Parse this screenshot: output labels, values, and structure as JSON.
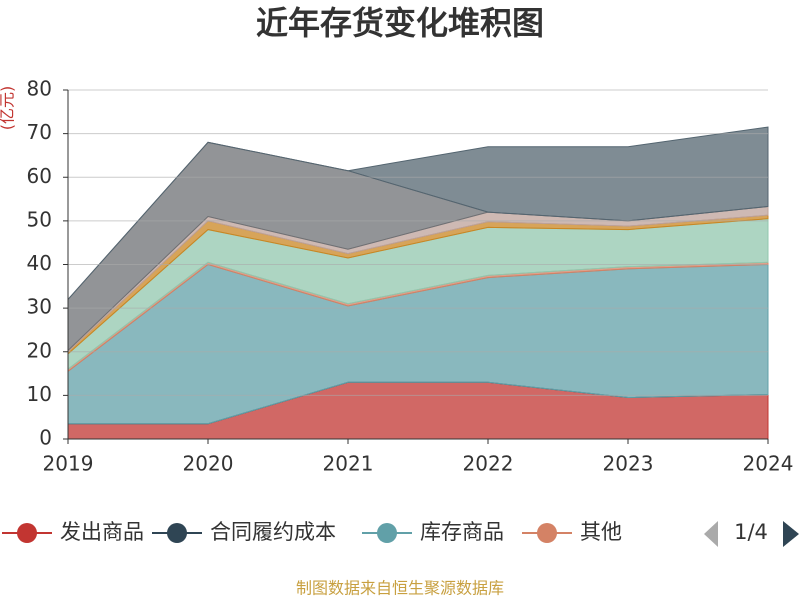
{
  "chart_data": {
    "type": "stacked_area",
    "title": "近年存货变化堆积图",
    "y_unit": "(亿元)",
    "source": "制图数据来自恒生聚源数据库",
    "legend_page": "1/4",
    "categories": [
      "2019",
      "2020",
      "2021",
      "2022",
      "2023",
      "2024"
    ],
    "ylim": [
      0,
      80
    ],
    "yticks": [
      0,
      10,
      20,
      30,
      40,
      50,
      60,
      70,
      80
    ],
    "grid": true,
    "series": [
      {
        "name": "发出商品",
        "color": "#c23531",
        "values": [
          3.5,
          3.5,
          13,
          13,
          9.5,
          10.2
        ]
      },
      {
        "name": "合同履约成本",
        "color": "#2f4554",
        "values": [
          0,
          0,
          0,
          0,
          0,
          0
        ]
      },
      {
        "name": "库存商品",
        "color": "#61a0a8",
        "values": [
          12,
          36.5,
          17.5,
          24,
          29.5,
          29.8
        ]
      },
      {
        "name": "其他",
        "color": "#d48265",
        "values": [
          0.5,
          0.5,
          0.5,
          0.5,
          0.5,
          0.5
        ]
      },
      {
        "color": "#91c7ae",
        "values": [
          3.5,
          7.5,
          10.5,
          11,
          8.5,
          10
        ]
      },
      {
        "color": "#ca8622",
        "values": [
          0.5,
          2,
          1,
          1.3,
          0.8,
          0.8
        ]
      },
      {
        "color": "#bda29a",
        "values": [
          0.3,
          1,
          1,
          2.2,
          1.2,
          2
        ]
      },
      {
        "color": "#6e7074",
        "values": [
          11.7,
          17,
          18,
          0,
          0,
          0
        ]
      },
      {
        "color": "#546570",
        "values": [
          0,
          0,
          0,
          15,
          17,
          18.2
        ]
      }
    ]
  }
}
